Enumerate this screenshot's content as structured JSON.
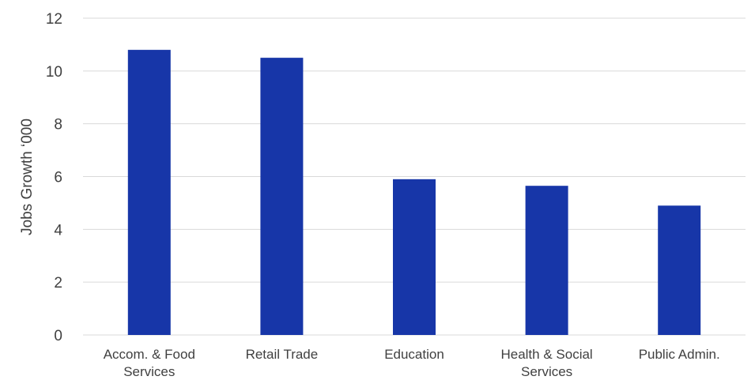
{
  "chart_data": {
    "type": "bar",
    "title": "",
    "xlabel": "",
    "ylabel": "Jobs Growth ‘000",
    "ylim": [
      0,
      12
    ],
    "yticks": [
      "0",
      "2",
      "4",
      "6",
      "8",
      "10",
      "12"
    ],
    "grid": true,
    "legend": "none",
    "categories": [
      [
        "Accom. & Food",
        "Services"
      ],
      [
        "Retail Trade"
      ],
      [
        "Education"
      ],
      [
        "Health & Social",
        "Services"
      ],
      [
        "Public Admin."
      ]
    ],
    "values": [
      10.8,
      10.5,
      5.9,
      5.65,
      4.9
    ],
    "bar_color": "#1736a8"
  }
}
